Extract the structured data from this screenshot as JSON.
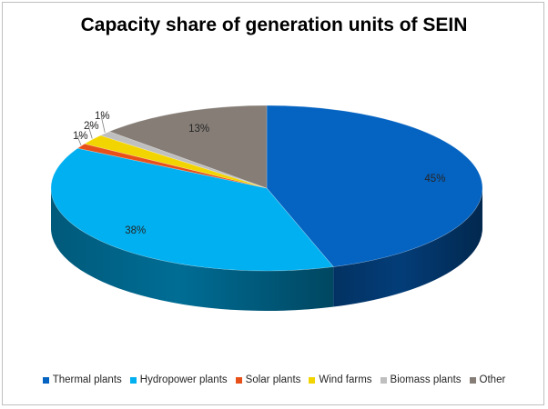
{
  "chart_data": {
    "type": "pie",
    "title": "Capacity share of generation units of SEIN",
    "categories": [
      "Thermal plants",
      "Hydropower plants",
      "Solar plants",
      "Wind farms",
      "Biomass plants",
      "Other"
    ],
    "values": [
      45,
      38,
      1,
      2,
      1,
      13
    ],
    "labels": [
      "45%",
      "38%",
      "1%",
      "2%",
      "1%",
      "13%"
    ],
    "colors": [
      "#0563C1",
      "#00B0F0",
      "#E8501A",
      "#F2D500",
      "#BFBFBF",
      "#857D76"
    ],
    "legend_position": "bottom",
    "style": "3d"
  }
}
